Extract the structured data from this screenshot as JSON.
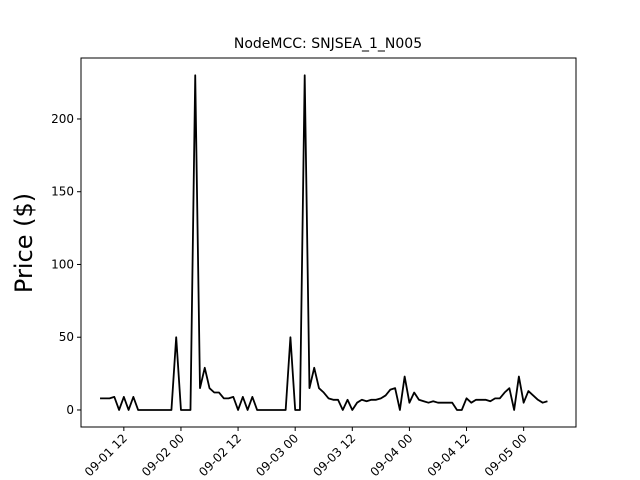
{
  "chart_data": {
    "type": "line",
    "title": "NodeMCC: SNJSEA_1_N005",
    "ylabel": "Price ($)",
    "x": [
      "09-01 07",
      "09-01 08",
      "09-01 09",
      "09-01 10",
      "09-01 11",
      "09-01 12",
      "09-01 13",
      "09-01 14",
      "09-01 15",
      "09-01 16",
      "09-01 17",
      "09-01 18",
      "09-01 19",
      "09-01 20",
      "09-01 21",
      "09-01 22",
      "09-01 23",
      "09-02 00",
      "09-02 01",
      "09-02 02",
      "09-02 03",
      "09-02 04",
      "09-02 05",
      "09-02 06",
      "09-02 07",
      "09-02 08",
      "09-02 09",
      "09-02 10",
      "09-02 11",
      "09-02 12",
      "09-02 13",
      "09-02 14",
      "09-02 15",
      "09-02 16",
      "09-02 17",
      "09-02 18",
      "09-02 19",
      "09-02 20",
      "09-02 21",
      "09-02 22",
      "09-02 23",
      "09-03 00",
      "09-03 01",
      "09-03 02",
      "09-03 03",
      "09-03 04",
      "09-03 05",
      "09-03 06",
      "09-03 07",
      "09-03 08",
      "09-03 09",
      "09-03 10",
      "09-03 11",
      "09-03 12",
      "09-03 13",
      "09-03 14",
      "09-03 15",
      "09-03 16",
      "09-03 17",
      "09-03 18",
      "09-03 19",
      "09-03 20",
      "09-03 21",
      "09-03 22",
      "09-03 23",
      "09-04 00",
      "09-04 01",
      "09-04 02",
      "09-04 03",
      "09-04 04",
      "09-04 05",
      "09-04 06",
      "09-04 07",
      "09-04 08",
      "09-04 09",
      "09-04 10",
      "09-04 11",
      "09-04 12",
      "09-04 13",
      "09-04 14",
      "09-04 15",
      "09-04 16",
      "09-04 17",
      "09-04 18",
      "09-04 19",
      "09-04 20",
      "09-04 21",
      "09-04 22",
      "09-04 23",
      "09-05 00",
      "09-05 01",
      "09-05 02",
      "09-05 03",
      "09-05 04",
      "09-05 05"
    ],
    "series": [
      {
        "name": "SNJSEA_1_N005",
        "color": "#000000",
        "values": [
          8,
          8,
          8,
          9,
          0,
          9,
          0,
          9,
          0,
          0,
          0,
          0,
          0,
          0,
          0,
          0,
          50,
          0,
          0,
          0,
          230,
          15,
          29,
          15,
          12,
          12,
          8,
          8,
          9,
          0,
          9,
          0,
          9,
          0,
          0,
          0,
          0,
          0,
          0,
          0,
          50,
          0,
          0,
          230,
          15,
          29,
          15,
          12,
          8,
          7,
          7,
          0,
          7,
          0,
          5,
          7,
          6,
          7,
          7,
          8,
          10,
          14,
          15,
          0,
          23,
          5,
          12,
          7,
          6,
          5,
          6,
          5,
          5,
          5,
          5,
          0,
          0,
          8,
          5,
          7,
          7,
          7,
          6,
          8,
          8,
          12,
          15,
          0,
          23,
          5,
          13,
          10,
          7,
          5,
          6
        ]
      }
    ],
    "xlim": [
      "09-01 03",
      "09-05 11"
    ],
    "xticks": [
      "09-01 12",
      "09-02 00",
      "09-02 12",
      "09-03 00",
      "09-03 12",
      "09-04 00",
      "09-04 12",
      "09-05 00"
    ],
    "ylim": [
      -11.7,
      241.9
    ],
    "yticks": [
      0,
      50,
      100,
      150,
      200
    ],
    "grid": false
  }
}
